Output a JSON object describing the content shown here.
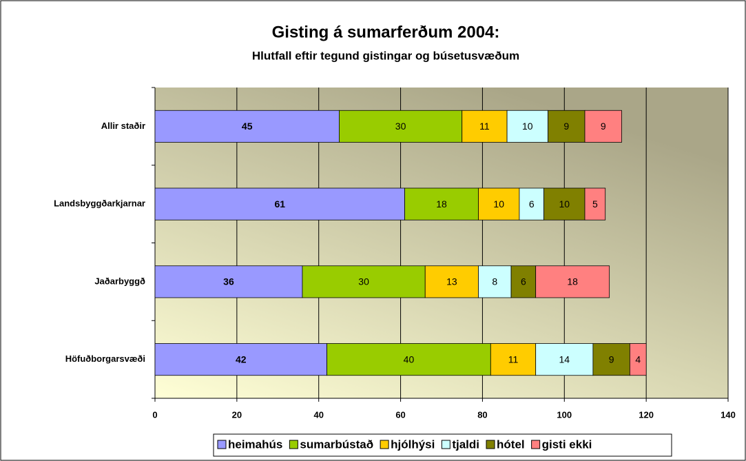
{
  "chart_data": {
    "type": "stacked_barh",
    "title": "Gisting á sumarferðum 2004:",
    "subtitle": "Hlutfall eftir tegund gistingar og búsetusvæðum",
    "categories": [
      "Allir staðir",
      "Landsbyggðarkjarnar",
      "Jaðarbyggð",
      "Höfuðborgarsvæði"
    ],
    "series": [
      {
        "name": "heimahús",
        "color": "#9999ff",
        "values": [
          45,
          61,
          36,
          42
        ]
      },
      {
        "name": "sumarbústað",
        "color": "#99cc00",
        "values": [
          30,
          18,
          30,
          40
        ]
      },
      {
        "name": "hjólhýsi",
        "color": "#ffcc00",
        "values": [
          11,
          10,
          13,
          11
        ]
      },
      {
        "name": "tjaldi",
        "color": "#ccffff",
        "values": [
          10,
          6,
          8,
          14
        ]
      },
      {
        "name": "hótel",
        "color": "#808000",
        "values": [
          9,
          10,
          6,
          9
        ]
      },
      {
        "name": "gisti ekki",
        "color": "#ff8080",
        "values": [
          9,
          5,
          18,
          4
        ]
      }
    ],
    "xlim": [
      0,
      140
    ],
    "xticks": [
      0,
      20,
      40,
      60,
      80,
      100,
      120,
      140
    ],
    "grid": true,
    "legend": "bottom"
  }
}
